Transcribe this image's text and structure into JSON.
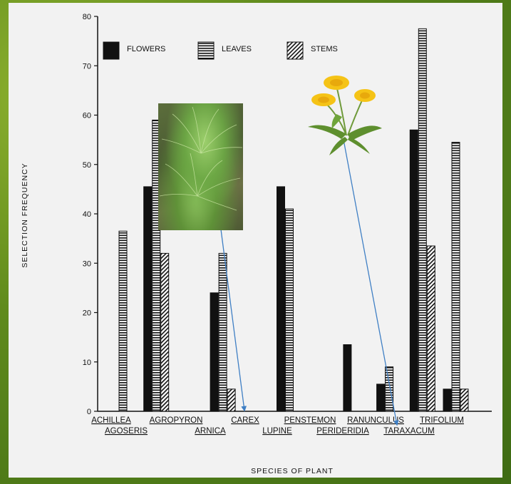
{
  "chart_data": {
    "type": "bar",
    "title": "",
    "xlabel": "SPECIES OF PLANT",
    "ylabel": "SELECTION FREQUENCY",
    "ylim": [
      0,
      80
    ],
    "yticks": [
      0,
      10,
      20,
      30,
      40,
      50,
      60,
      70,
      80
    ],
    "categories": [
      "ACHILLEA",
      "AGOSERIS",
      "AGROPYRON",
      "ARNICA",
      "CAREX",
      "LUPINE",
      "PENSTEMON",
      "PERIDERIDIA",
      "RANUNCULUS",
      "TARAXACUM",
      "TRIFOLIUM"
    ],
    "series": [
      {
        "name": "FLOWERS",
        "pattern": "solid",
        "values": [
          0,
          45.5,
          0,
          24,
          0,
          45.5,
          0,
          13.5,
          5.5,
          57,
          4.5
        ]
      },
      {
        "name": "LEAVES",
        "pattern": "horizontal-stripes",
        "values": [
          36.5,
          59,
          0,
          32,
          0,
          41,
          0,
          0,
          9,
          77.5,
          54.5
        ]
      },
      {
        "name": "STEMS",
        "pattern": "diagonal-hatch",
        "values": [
          0,
          32,
          0,
          4.5,
          0,
          0,
          0,
          0,
          0,
          33.5,
          4.5
        ]
      }
    ],
    "legend_position": "top",
    "grid": false
  },
  "photos": {
    "grass": "grass-tussock-photo",
    "dandelion": "dandelion-photo"
  },
  "colors": {
    "arrow": "#3f7fc4",
    "bar_fill": "#111111",
    "slide_bg": "#f2f2f2"
  }
}
